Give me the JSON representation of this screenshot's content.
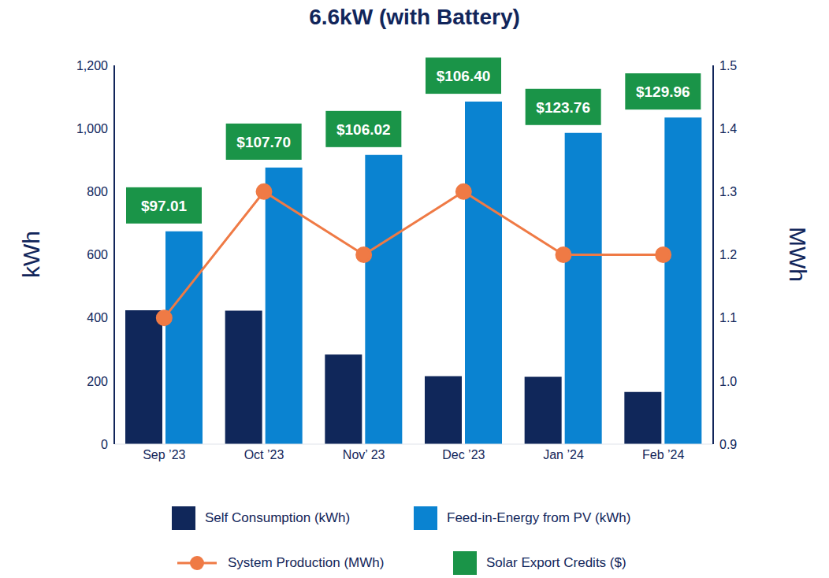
{
  "chart_data": {
    "type": "bar",
    "title": "6.6kW (with Battery)",
    "y_label": "kWh",
    "y2_label": "MWh",
    "categories": [
      "Sep ’23",
      "Oct ’23",
      "Nov’ 23",
      "Dec ’23",
      "Jan ’24",
      "Feb ’24"
    ],
    "ylim": [
      0,
      1200
    ],
    "yticks": [
      0,
      200,
      400,
      600,
      800,
      {
        "value": 1000,
        "label": "1,000"
      },
      {
        "value": 1200,
        "label": "1,200"
      }
    ],
    "y2lim": [
      0.9,
      1.5
    ],
    "y2ticks": [
      0.9,
      {
        "value": 1,
        "label": "1.0"
      },
      1.1,
      1.2,
      1.3,
      1.4,
      1.5
    ],
    "grid": false,
    "legend": "bottom",
    "series": [
      {
        "name": "Self Consumption (kWh)",
        "type": "bar",
        "color": "#10275a",
        "values": [
          424,
          423,
          284,
          215,
          213,
          165
        ]
      },
      {
        "name": "Feed-in-Energy from PV (kWh)",
        "type": "bar",
        "color": "#0a83d1",
        "values": [
          674,
          876,
          916,
          1085,
          986,
          1035
        ]
      },
      {
        "name": "System Production (MWh)",
        "type": "line",
        "axis": "y2",
        "marker": "o",
        "color": "#ef7a45",
        "values": [
          1.1,
          1.3,
          1.2,
          1.3,
          1.2,
          1.2
        ]
      },
      {
        "name": "Solar Export Credits ($)",
        "type": "label",
        "color": "#1a9448",
        "values": [
          97.01,
          107.7,
          106.02,
          106.4,
          123.76,
          129.96
        ],
        "value_labels": [
          "$97.01",
          "$107.70",
          "$106.02",
          "$106.40",
          "$123.76",
          "$129.96"
        ]
      }
    ]
  }
}
